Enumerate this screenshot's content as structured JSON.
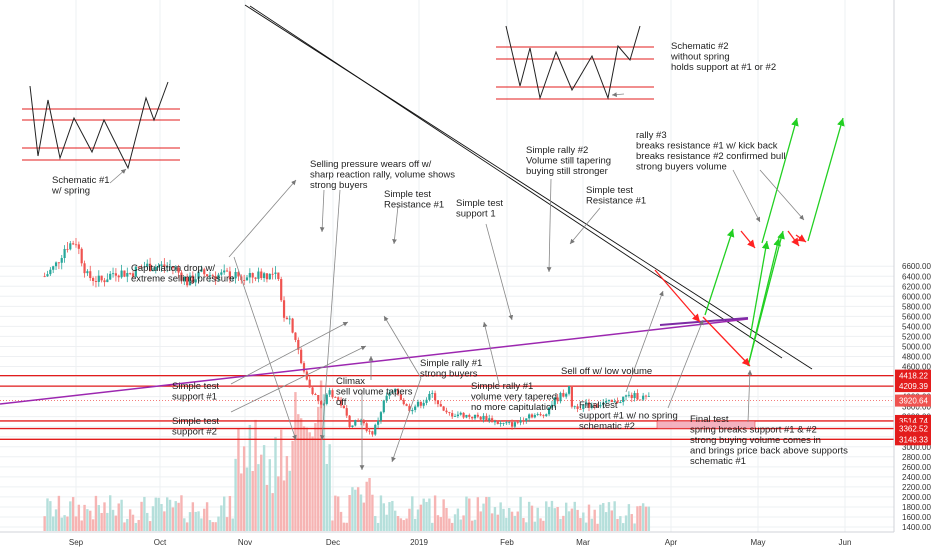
{
  "chart_data": {
    "type": "candlestick",
    "y_ticks": [
      "6600.00",
      "6400.00",
      "6200.00",
      "6000.00",
      "5800.00",
      "5600.00",
      "5400.00",
      "5200.00",
      "5000.00",
      "4800.00",
      "4600.00",
      "4400.00",
      "4200.00",
      "4000.00",
      "3800.00",
      "3600.00",
      "3400.00",
      "3200.00",
      "3000.00",
      "2800.00",
      "2600.00",
      "2400.00",
      "2200.00",
      "2000.00",
      "1800.00",
      "1600.00",
      "1400.00"
    ],
    "x_ticks": [
      "Sep",
      "Oct",
      "Nov",
      "Dec",
      "2019",
      "Feb",
      "Mar",
      "Apr",
      "May",
      "Jun"
    ],
    "price_tags": [
      "4418.22",
      "4209.39",
      "3920.64",
      "3514.74",
      "3362.52",
      "3148.33"
    ],
    "horizontal_levels": [
      4418.22,
      4209.39,
      3514.74,
      3362.52,
      3148.33
    ],
    "current_price": 3920.64,
    "price_path": [
      [
        "Aug 20",
        6400
      ],
      [
        "Aug 24",
        6600
      ],
      [
        "Aug 28",
        7000
      ],
      [
        "Sep 1",
        7100
      ],
      [
        "Sep 5",
        6400
      ],
      [
        "Sep 10",
        6300
      ],
      [
        "Sep 15",
        6500
      ],
      [
        "Sep 20",
        6450
      ],
      [
        "Sep 25",
        6600
      ],
      [
        "Oct 1",
        6600
      ],
      [
        "Oct 6",
        6580
      ],
      [
        "Oct 11",
        6280
      ],
      [
        "Oct 16",
        6450
      ],
      [
        "Oct 21",
        6420
      ],
      [
        "Oct 26",
        6430
      ],
      [
        "Nov 1",
        6340
      ],
      [
        "Nov 7",
        6450
      ],
      [
        "Nov 12",
        6390
      ],
      [
        "Nov 14",
        5650
      ],
      [
        "Nov 16",
        5600
      ],
      [
        "Nov 19",
        5000
      ],
      [
        "Nov 20",
        4650
      ],
      [
        "Nov 22",
        4350
      ],
      [
        "Nov 25",
        4000
      ],
      [
        "Nov 27",
        3800
      ],
      [
        "Nov 30",
        4100
      ],
      [
        "Dec 4",
        3850
      ],
      [
        "Dec 7",
        3450
      ],
      [
        "Dec 10",
        3550
      ],
      [
        "Dec 15",
        3250
      ],
      [
        "Dec 17",
        3500
      ],
      [
        "Dec 20",
        4000
      ],
      [
        "Dec 24",
        4100
      ],
      [
        "Dec 28",
        3750
      ],
      [
        "Jan 1",
        3850
      ],
      [
        "Jan 6",
        4050
      ],
      [
        "Jan 10",
        3650
      ],
      [
        "Jan 15",
        3650
      ],
      [
        "Jan 20",
        3600
      ],
      [
        "Jan 25",
        3570
      ],
      [
        "Jan 30",
        3450
      ],
      [
        "Feb 4",
        3450
      ],
      [
        "Feb 9",
        3650
      ],
      [
        "Feb 14",
        3600
      ],
      [
        "Feb 18",
        3900
      ],
      [
        "Feb 24",
        4150
      ],
      [
        "Feb 25",
        3800
      ],
      [
        "Mar 3",
        3830
      ],
      [
        "Mar 8",
        3870
      ],
      [
        "Mar 12",
        3870
      ],
      [
        "Mar 16",
        4000
      ],
      [
        "Mar 20",
        4010
      ],
      [
        "Mar 24",
        3960
      ],
      [
        "Mar 25",
        3920
      ]
    ],
    "annotations": [
      {
        "id": "schematic-1",
        "lines": [
          "Schematic #1",
          "w/ spring"
        ]
      },
      {
        "id": "schematic-2",
        "lines": [
          "Schematic #2",
          "without spring",
          "holds support at #1 or #2"
        ]
      },
      {
        "id": "selling-pressure",
        "lines": [
          "Selling pressure wears off w/",
          "sharp reaction rally, volume shows",
          "strong buyers"
        ]
      },
      {
        "id": "capitulation",
        "lines": [
          "Capitulation drop w/",
          "extreme selling pressure"
        ]
      },
      {
        "id": "simple-test-resistance-1a",
        "lines": [
          "Simple test",
          "Resistance #1"
        ]
      },
      {
        "id": "simple-test-support-1a",
        "lines": [
          "Simple test",
          "support 1"
        ]
      },
      {
        "id": "simple-rally-2",
        "lines": [
          "Simple rally #2",
          "Volume still tapering",
          "buying still stronger"
        ]
      },
      {
        "id": "simple-test-resistance-1b",
        "lines": [
          "Simple test",
          "Resistance #1"
        ]
      },
      {
        "id": "rally-3",
        "lines": [
          "rally #3",
          "breaks resistance #1 w/ kick back",
          "breaks resistance #2 confirmed bull",
          "strong buyers volume"
        ]
      },
      {
        "id": "simple-test-support-1b",
        "lines": [
          "Simple test",
          "support #1"
        ]
      },
      {
        "id": "simple-test-support-2",
        "lines": [
          "Simple test",
          "support #2"
        ]
      },
      {
        "id": "climax",
        "lines": [
          "Climax",
          "sell volume tapers",
          "off"
        ]
      },
      {
        "id": "simple-rally-1a",
        "lines": [
          "Simple rally #1",
          "strong buyers"
        ]
      },
      {
        "id": "simple-rally-1b",
        "lines": [
          "Simple rally #1",
          "volume very tapered",
          "no more capitulation"
        ]
      },
      {
        "id": "sell-off",
        "lines": [
          "Sell off w/ low volume"
        ]
      },
      {
        "id": "final-test-1",
        "lines": [
          "Final test",
          "support #1 w/ no spring",
          "schematic #2"
        ]
      },
      {
        "id": "final-test-2",
        "lines": [
          "Final test",
          "spring breaks support #1 & #2",
          "strong buying volume comes in",
          "and brings price back above supports",
          "schematic #1"
        ]
      }
    ],
    "colors": {
      "up": "#26a69a",
      "down": "#ef5350",
      "resistance_support": "#e31c1c",
      "trendline_purple": "#9c27b0",
      "projection_green": "#22d022",
      "projection_red": "#ff2222",
      "zone_fill": "#f2a0b0"
    }
  }
}
